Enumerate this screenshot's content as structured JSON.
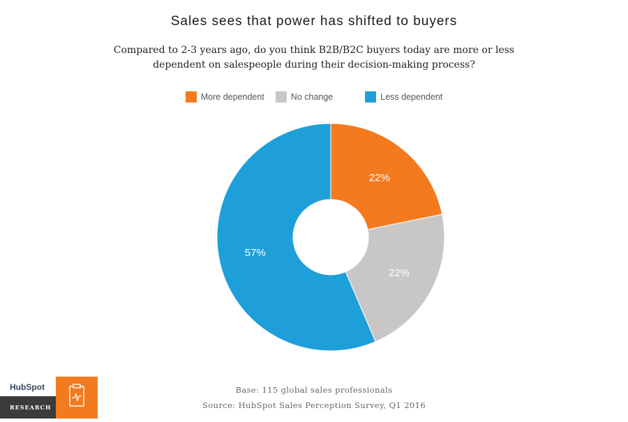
{
  "header": {
    "title": "Sales sees that power has shifted to buyers",
    "subtitle": "Compared to 2-3 years ago, do you think B2B/B2C buyers today are more or less dependent on salespeople during their decision-making process?"
  },
  "legend": {
    "items": [
      {
        "label": "More dependent",
        "color": "#f47a20"
      },
      {
        "label": "No change",
        "color": "#c8c7c6"
      },
      {
        "label": "Less dependent",
        "color": "#1f9fd9"
      }
    ]
  },
  "chart_data": {
    "type": "pie",
    "donut": true,
    "categories": [
      "More dependent",
      "No change",
      "Less dependent"
    ],
    "values": [
      22,
      22,
      57
    ],
    "labels": [
      "22%",
      "22%",
      "57%"
    ],
    "colors": [
      "#f47a20",
      "#c8c7c6",
      "#1f9fd9"
    ],
    "title": "Sales sees that power has shifted to buyers",
    "legend_position": "top"
  },
  "footer": {
    "base": "Base: 115 global sales professionals",
    "source": "Source: HubSpot Sales Perception Survey, Q1 2016"
  },
  "brand": {
    "logo_text": "HubSpot",
    "label": "RESEARCH",
    "icon": "clipboard-chart-icon"
  }
}
